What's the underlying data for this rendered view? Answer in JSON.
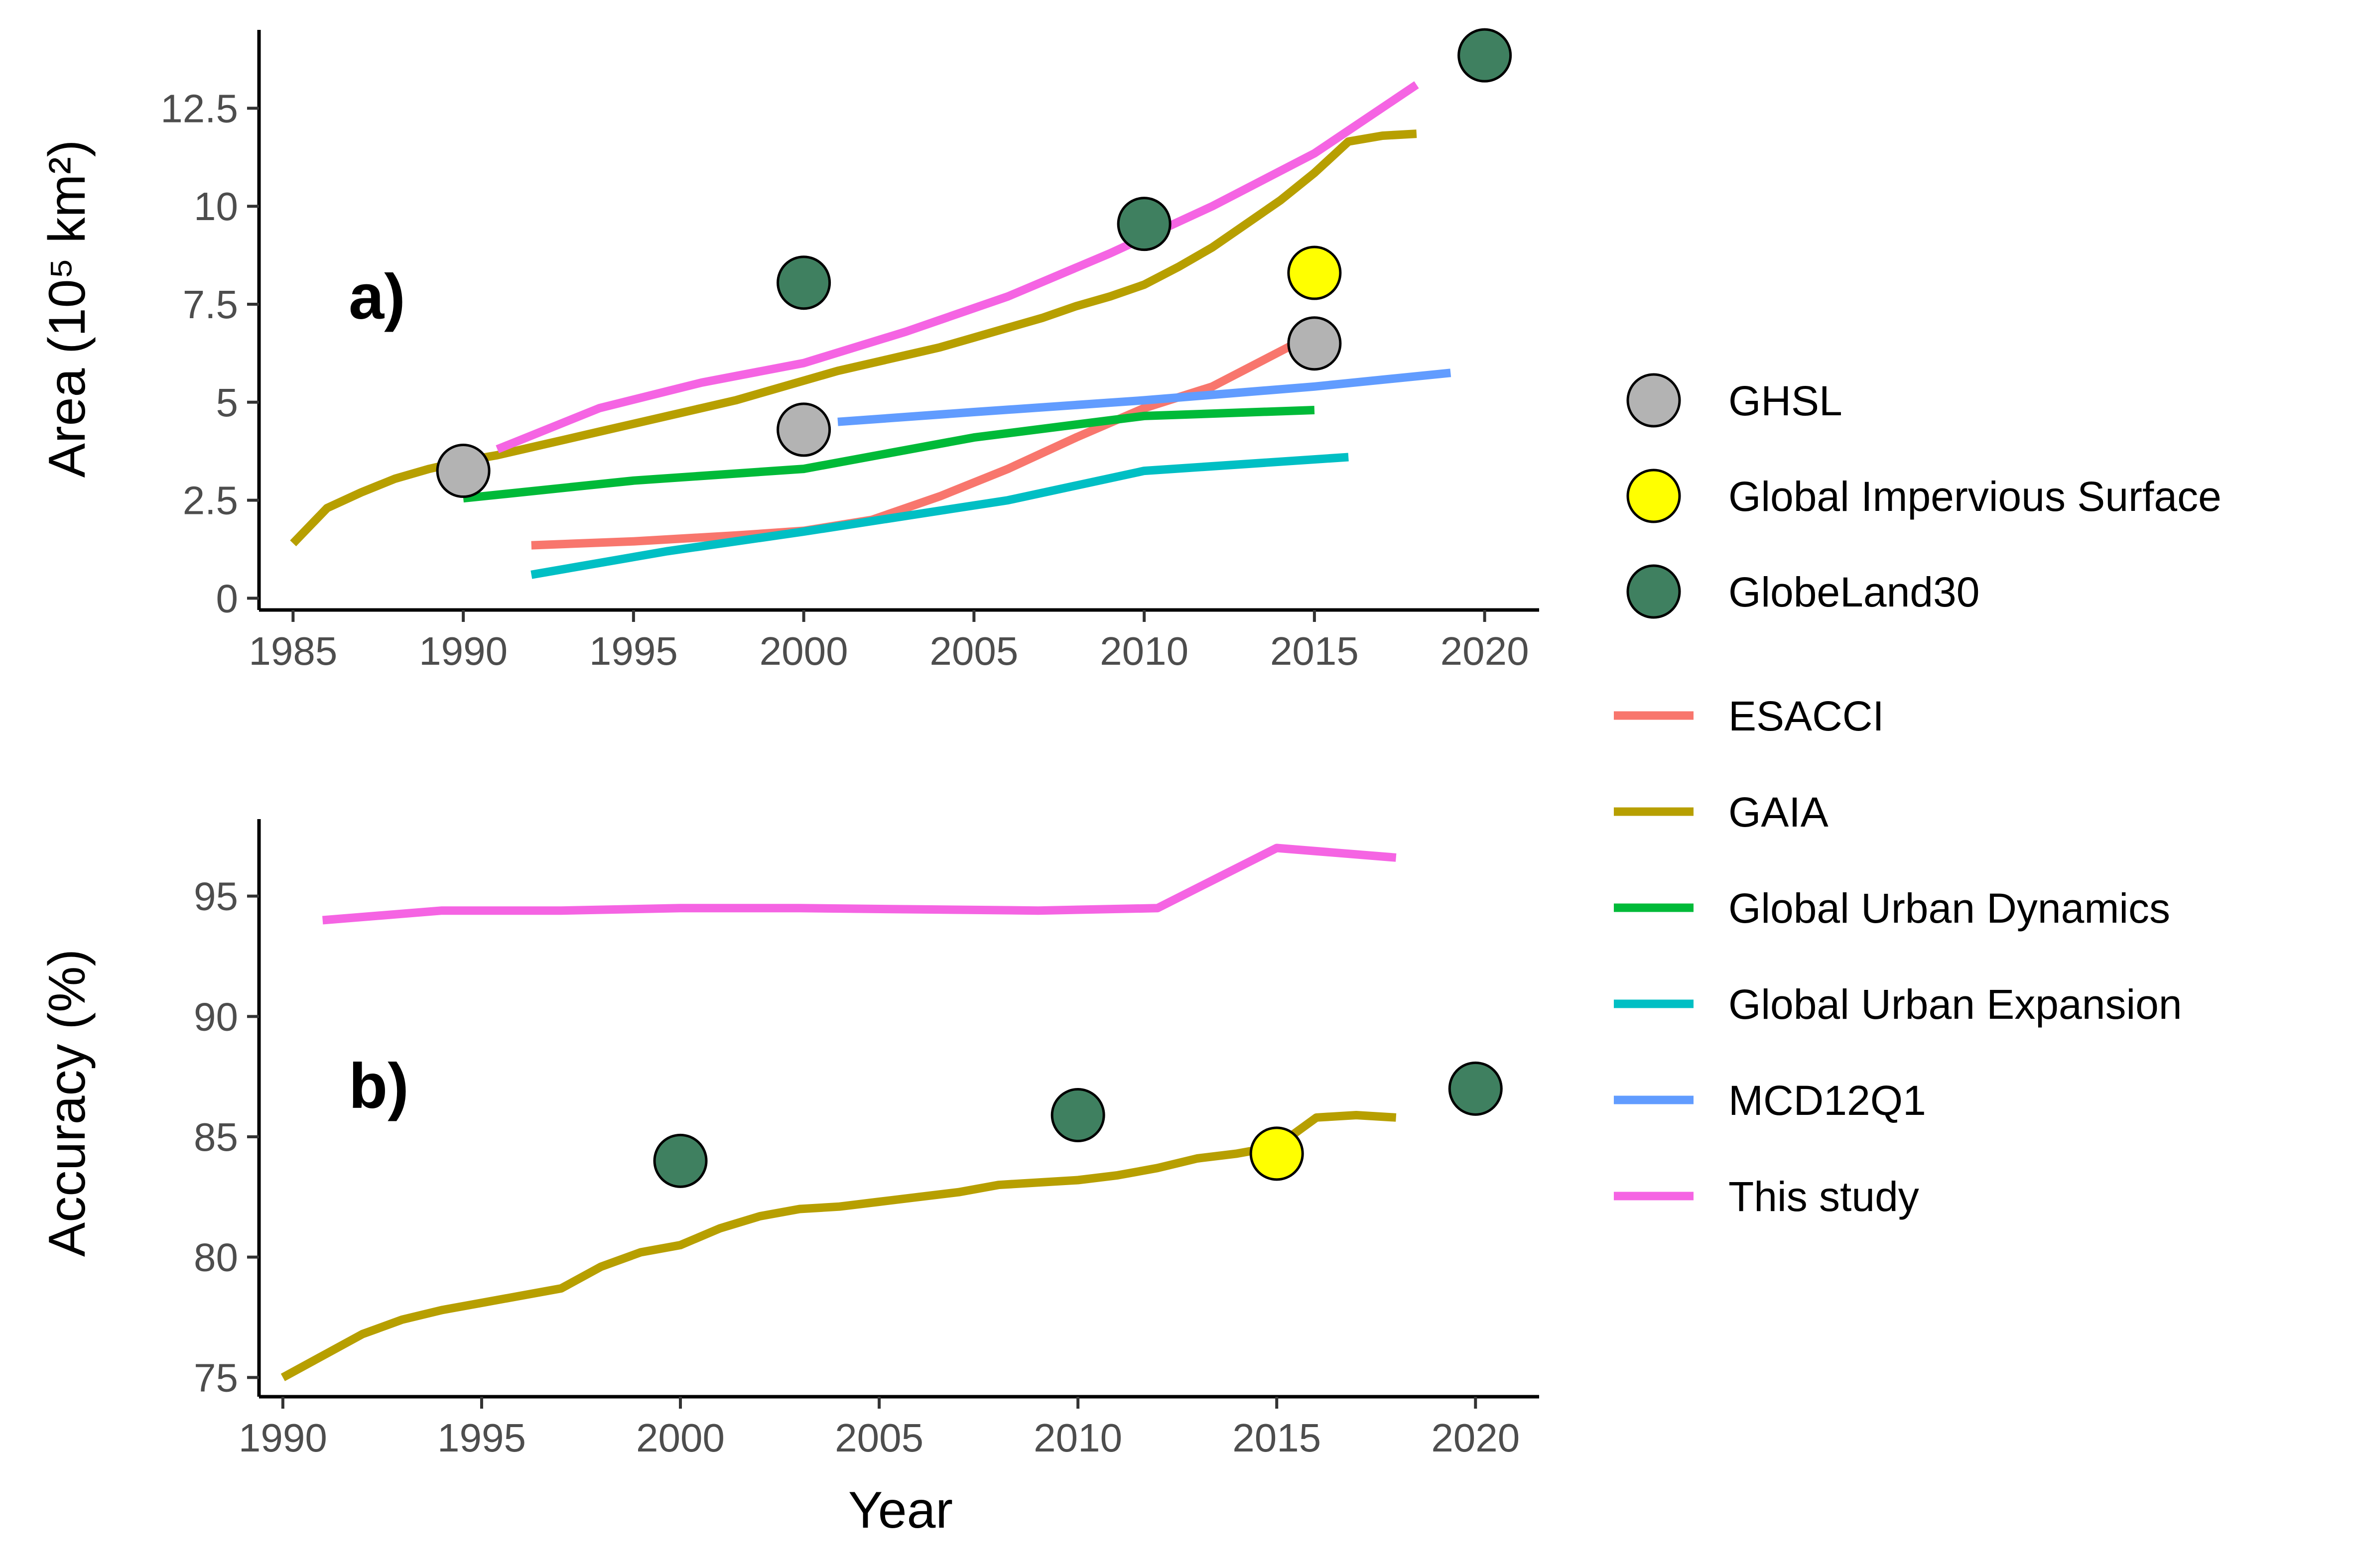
{
  "colors": {
    "GHSL": "#b3b3b3",
    "Global Impervious Surface": "#ffff00",
    "GlobeLand30": "#3f8060",
    "ESACCI": "#f8766d",
    "GAIA": "#b79f00",
    "Global Urban Dynamics": "#00ba38",
    "Global Urban Expansion": "#00bfc4",
    "MCD12Q1": "#619cff",
    "This study": "#f564e3"
  },
  "legend": {
    "points": [
      "GHSL",
      "Global Impervious Surface",
      "GlobeLand30"
    ],
    "lines": [
      "ESACCI",
      "GAIA",
      "Global Urban Dynamics",
      "Global Urban Expansion",
      "MCD12Q1",
      "This study"
    ]
  },
  "chart_data": [
    {
      "type": "line",
      "panel_label": "a)",
      "ylabel": "Area (10⁵ km²)",
      "xlabel": "",
      "xlim": [
        1984,
        2021.6
      ],
      "ylim": [
        -0.3,
        14.5
      ],
      "xticks": [
        1985,
        1990,
        1995,
        2000,
        2005,
        2010,
        2015,
        2020
      ],
      "xtick_labels": [
        "1985",
        "1990",
        "1995",
        "2000",
        "2005",
        "2010",
        "2015",
        "2020"
      ],
      "yticks": [
        0,
        2.5,
        5,
        7.5,
        10,
        12.5
      ],
      "ytick_labels": [
        "0",
        "2.5",
        "5",
        "7.5",
        "10",
        "12.5"
      ],
      "series": [
        {
          "name": "ESACCI",
          "x": [
            1992,
            1995,
            1998,
            2000,
            2002,
            2004,
            2006,
            2008,
            2010,
            2012,
            2014,
            2015
          ],
          "y": [
            1.35,
            1.45,
            1.6,
            1.72,
            2.0,
            2.6,
            3.3,
            4.1,
            4.85,
            5.4,
            6.3,
            6.75
          ]
        },
        {
          "name": "GAIA",
          "x": [
            1985,
            1986,
            1987,
            1988,
            1989,
            1990,
            1991,
            1992,
            1993,
            1994,
            1995,
            1996,
            1997,
            1998,
            1999,
            2000,
            2001,
            2002,
            2003,
            2004,
            2005,
            2006,
            2007,
            2008,
            2009,
            2010,
            2011,
            2012,
            2013,
            2014,
            2015,
            2016,
            2017,
            2018
          ],
          "y": [
            1.4,
            2.3,
            2.7,
            3.05,
            3.3,
            3.5,
            3.65,
            3.85,
            4.05,
            4.25,
            4.45,
            4.65,
            4.85,
            5.05,
            5.3,
            5.55,
            5.8,
            6.0,
            6.2,
            6.4,
            6.65,
            6.9,
            7.15,
            7.45,
            7.7,
            8.0,
            8.45,
            8.95,
            9.55,
            10.15,
            10.85,
            11.65,
            11.8,
            11.85
          ]
        },
        {
          "name": "Global Urban Dynamics",
          "x": [
            1990,
            1995,
            2000,
            2005,
            2010,
            2015
          ],
          "y": [
            2.55,
            3.0,
            3.3,
            4.1,
            4.65,
            4.8
          ]
        },
        {
          "name": "Global Urban Expansion",
          "x": [
            1992,
            1996,
            2000,
            2006,
            2010,
            2016
          ],
          "y": [
            0.6,
            1.2,
            1.7,
            2.5,
            3.25,
            3.6
          ]
        },
        {
          "name": "MCD12Q1",
          "x": [
            2001,
            2005,
            2010,
            2015,
            2019
          ],
          "y": [
            4.5,
            4.75,
            5.05,
            5.4,
            5.75
          ]
        },
        {
          "name": "This study",
          "x": [
            1991,
            1994,
            1997,
            2000,
            2003,
            2006,
            2009,
            2012,
            2015,
            2018
          ],
          "y": [
            3.8,
            4.85,
            5.5,
            6.0,
            6.8,
            7.7,
            8.8,
            10.0,
            11.35,
            13.1
          ]
        }
      ],
      "points": [
        {
          "name": "GHSL",
          "x": 1990,
          "y": 3.25
        },
        {
          "name": "GHSL",
          "x": 2000,
          "y": 4.3
        },
        {
          "name": "GHSL",
          "x": 2015,
          "y": 6.5
        },
        {
          "name": "Global Impervious Surface",
          "x": 2015,
          "y": 8.3
        },
        {
          "name": "GlobeLand30",
          "x": 2000,
          "y": 8.05
        },
        {
          "name": "GlobeLand30",
          "x": 2010,
          "y": 9.55
        },
        {
          "name": "GlobeLand30",
          "x": 2020,
          "y": 13.85
        }
      ]
    },
    {
      "type": "line",
      "panel_label": "b)",
      "ylabel": "Accuracy (%)",
      "xlabel": "Year",
      "xlim": [
        1989.4,
        2021.6
      ],
      "ylim": [
        74.2,
        98.2
      ],
      "xticks": [
        1990,
        1995,
        2000,
        2005,
        2010,
        2015,
        2020
      ],
      "xtick_labels": [
        "1990",
        "1995",
        "2000",
        "2005",
        "2010",
        "2015",
        "2020"
      ],
      "yticks": [
        75,
        80,
        85,
        90,
        95
      ],
      "ytick_labels": [
        "75",
        "80",
        "85",
        "90",
        "95"
      ],
      "series": [
        {
          "name": "GAIA",
          "x": [
            1990,
            1991,
            1992,
            1993,
            1994,
            1995,
            1996,
            1997,
            1998,
            1999,
            2000,
            2001,
            2002,
            2003,
            2004,
            2005,
            2006,
            2007,
            2008,
            2009,
            2010,
            2011,
            2012,
            2013,
            2014,
            2015,
            2016,
            2017,
            2018
          ],
          "y": [
            75.0,
            75.9,
            76.8,
            77.4,
            77.8,
            78.1,
            78.4,
            78.7,
            79.6,
            80.2,
            80.5,
            81.2,
            81.7,
            82.0,
            82.1,
            82.3,
            82.5,
            82.7,
            83.0,
            83.1,
            83.2,
            83.4,
            83.7,
            84.1,
            84.3,
            84.6,
            85.8,
            85.9,
            85.8
          ]
        },
        {
          "name": "This study",
          "x": [
            1991,
            1994,
            1997,
            2000,
            2003,
            2006,
            2009,
            2012,
            2015,
            2018
          ],
          "y": [
            94.0,
            94.4,
            94.4,
            94.5,
            94.5,
            94.45,
            94.4,
            94.5,
            97.0,
            96.6
          ]
        }
      ],
      "points": [
        {
          "name": "GlobeLand30",
          "x": 2000,
          "y": 84.0
        },
        {
          "name": "GlobeLand30",
          "x": 2010,
          "y": 85.9
        },
        {
          "name": "GlobeLand30",
          "x": 2020,
          "y": 87.0
        },
        {
          "name": "Global Impervious Surface",
          "x": 2015,
          "y": 84.3
        }
      ]
    }
  ]
}
